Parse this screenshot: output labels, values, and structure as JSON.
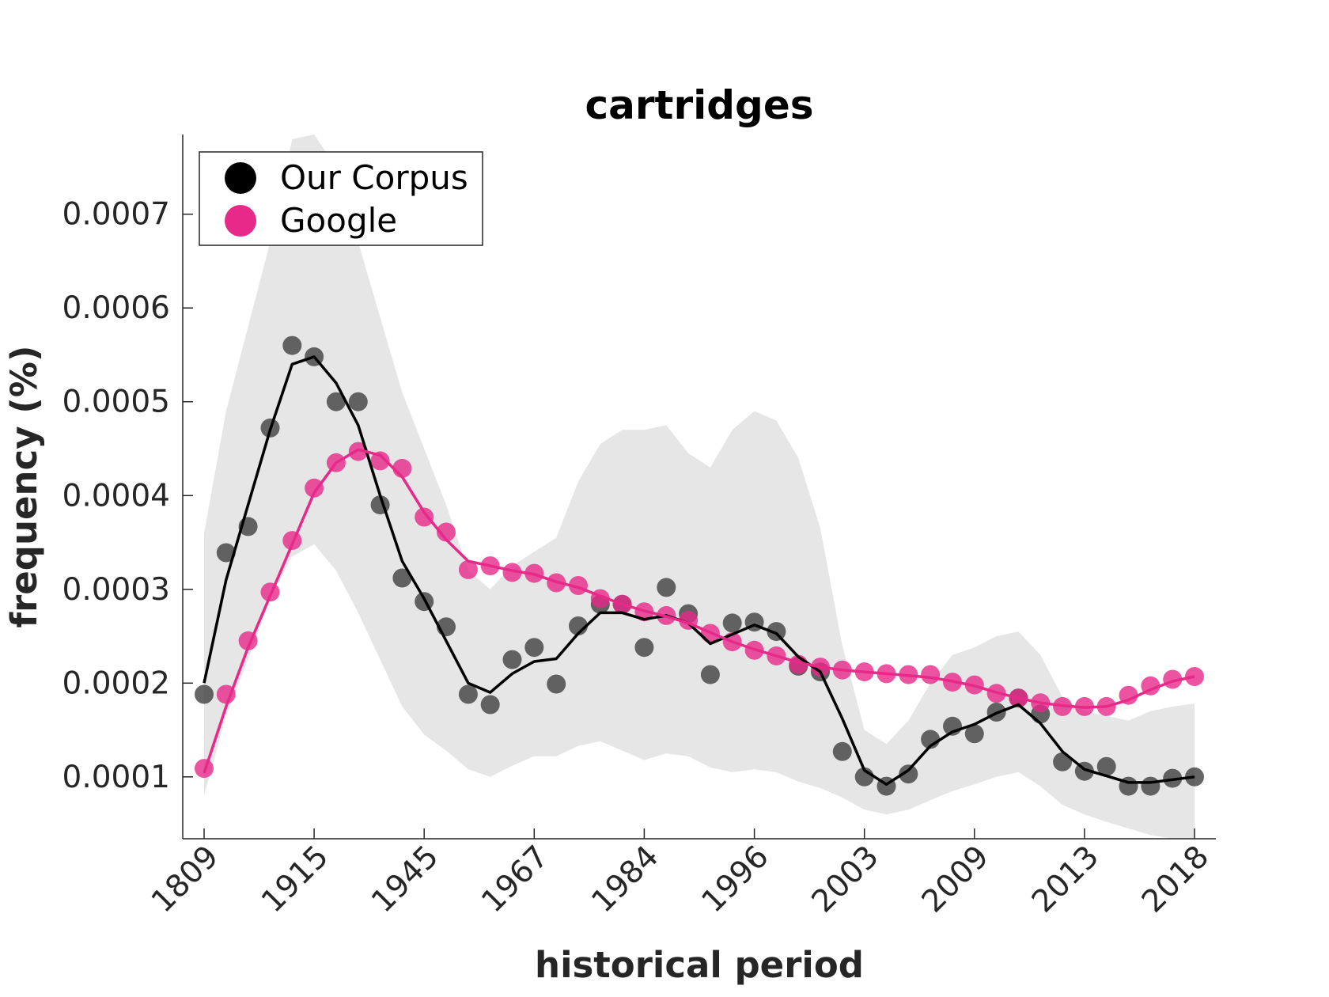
{
  "chart_data": {
    "type": "line",
    "title": "cartridges",
    "xlabel": "historical period",
    "ylabel": "frequency (%)",
    "x_tick_labels": [
      "1809",
      "1915",
      "1945",
      "1967",
      "1984",
      "1996",
      "2003",
      "2009",
      "2013",
      "2018"
    ],
    "y_ticks": [
      0.0001,
      0.0002,
      0.0003,
      0.0004,
      0.0005,
      0.0006,
      0.0007
    ],
    "y_tick_labels": [
      "0.0001",
      "0.0002",
      "0.0003",
      "0.0004",
      "0.0005",
      "0.0006",
      "0.0007"
    ],
    "ylim": [
      3.4e-05,
      0.000785
    ],
    "x_index_range": [
      0,
      45
    ],
    "legend_position": "top-left",
    "grid": false,
    "series": [
      {
        "name": "Our Corpus",
        "color": "#000000",
        "marker_color": "#404040",
        "points": [
          0.000188,
          0.000339,
          0.000367,
          0.000472,
          0.00056,
          0.000548,
          0.0005,
          0.0005,
          0.00039,
          0.000312,
          0.000287,
          0.00026,
          0.000188,
          0.000177,
          0.000225,
          0.000238,
          0.000199,
          0.000261,
          0.000284,
          0.000284,
          0.000238,
          0.000302,
          0.000274,
          0.000209,
          0.000264,
          0.000265,
          0.000255,
          0.000218,
          0.000212,
          0.000127,
          0.0001,
          9e-05,
          0.000103,
          0.00014,
          0.000154,
          0.000146,
          0.000169,
          0.000184,
          0.000167,
          0.000116,
          0.000106,
          0.000111,
          9e-05,
          9e-05,
          9.85e-05,
          0.0001
        ],
        "smooth": [
          0.0002,
          0.00031,
          0.00039,
          0.00047,
          0.00054,
          0.000548,
          0.00052,
          0.000475,
          0.0004,
          0.00033,
          0.00029,
          0.000245,
          0.0002,
          0.00019,
          0.00021,
          0.000223,
          0.000226,
          0.000253,
          0.000275,
          0.000275,
          0.000268,
          0.000272,
          0.000264,
          0.000242,
          0.000252,
          0.000262,
          0.000253,
          0.000228,
          0.000212,
          0.000162,
          0.000107,
          9.2e-05,
          0.000107,
          0.000133,
          0.000148,
          0.000156,
          0.000168,
          0.000177,
          0.000157,
          0.000127,
          0.000108,
          0.000101,
          9.4e-05,
          9.4e-05,
          9.7e-05,
          0.0001
        ]
      },
      {
        "name": "Google",
        "color": "#e7298a",
        "marker_color": "#e7298a",
        "points": [
          0.000109,
          0.000188,
          0.000245,
          0.000297,
          0.000352,
          0.000408,
          0.000435,
          0.000447,
          0.000437,
          0.000429,
          0.000377,
          0.000361,
          0.000321,
          0.000325,
          0.000318,
          0.000317,
          0.000307,
          0.000304,
          0.00029,
          0.000284,
          0.000276,
          0.000272,
          0.000267,
          0.000253,
          0.000244,
          0.000235,
          0.000229,
          0.00022,
          0.000217,
          0.000214,
          0.000212,
          0.00021,
          0.000209,
          0.000209,
          0.000201,
          0.000198,
          0.000189,
          0.000184,
          0.000179,
          0.000175,
          0.000175,
          0.000175,
          0.000187,
          0.000197,
          0.000204,
          0.000207
        ],
        "smooth": [
          0.000104,
          0.000175,
          0.000238,
          0.000293,
          0.000348,
          0.000403,
          0.000435,
          0.000449,
          0.000443,
          0.00042,
          0.000382,
          0.000353,
          0.00033,
          0.000325,
          0.00032,
          0.000316,
          0.000308,
          0.000302,
          0.000293,
          0.000284,
          0.000277,
          0.000271,
          0.000264,
          0.000254,
          0.000244,
          0.000236,
          0.000229,
          0.000222,
          0.000217,
          0.000214,
          0.000212,
          0.00021,
          0.000208,
          0.000206,
          0.000202,
          0.000197,
          0.00019,
          0.000184,
          0.000179,
          0.000176,
          0.000174,
          0.000175,
          0.000182,
          0.000193,
          0.000202,
          0.000207
        ]
      }
    ],
    "band": {
      "upper": [
        0.00036,
        0.00049,
        0.00058,
        0.00067,
        0.00078,
        0.000785,
        0.00075,
        0.00067,
        0.00059,
        0.00051,
        0.00045,
        0.00039,
        0.00032,
        0.0003,
        0.000325,
        0.00034,
        0.000355,
        0.000415,
        0.000455,
        0.00047,
        0.00047,
        0.000475,
        0.000445,
        0.00043,
        0.00047,
        0.00049,
        0.00048,
        0.00044,
        0.000365,
        0.00024,
        0.00015,
        0.000135,
        0.00016,
        0.0002,
        0.00023,
        0.000238,
        0.00025,
        0.000255,
        0.00023,
        0.000185,
        0.00017,
        0.000165,
        0.00016,
        0.00017,
        0.000175,
        0.000178
      ],
      "lower": [
        8e-05,
        0.000165,
        0.000225,
        0.00029,
        0.000335,
        0.000348,
        0.00032,
        0.000275,
        0.000225,
        0.000175,
        0.000145,
        0.000128,
        0.000108,
        0.0001,
        0.000112,
        0.000122,
        0.000122,
        0.000133,
        0.000138,
        0.000128,
        0.000118,
        0.000125,
        0.000122,
        0.00011,
        0.000105,
        0.000108,
        0.000105,
        9.5e-05,
        8.8e-05,
        7.8e-05,
        6.5e-05,
        6e-05,
        6.5e-05,
        7.5e-05,
        8.5e-05,
        9.2e-05,
        0.0001,
        0.000105,
        9e-05,
        7e-05,
        6e-05,
        5.2e-05,
        4.5e-05,
        3.8e-05,
        3.4e-05,
        3.4e-05
      ]
    }
  }
}
